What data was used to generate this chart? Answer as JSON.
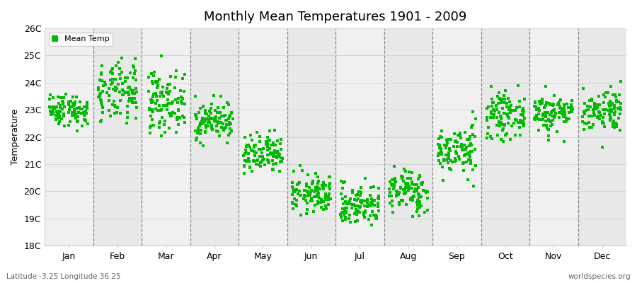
{
  "title": "Monthly Mean Temperatures 1901 - 2009",
  "ylabel": "Temperature",
  "xlabel_months": [
    "Jan",
    "Feb",
    "Mar",
    "Apr",
    "May",
    "Jun",
    "Jul",
    "Aug",
    "Sep",
    "Oct",
    "Nov",
    "Dec"
  ],
  "ylim": [
    18,
    26
  ],
  "yticks": [
    18,
    19,
    20,
    21,
    22,
    23,
    24,
    25,
    26
  ],
  "ytick_labels": [
    "18C",
    "19C",
    "20C",
    "21C",
    "22C",
    "23C",
    "24C",
    "25C",
    "26C"
  ],
  "background_color": "#ffffff",
  "plot_bg_color": "#ffffff",
  "band_color_even": "#f0f0f0",
  "band_color_odd": "#e8e8e8",
  "marker_color": "#00bb00",
  "marker_size": 3.5,
  "legend_label": "Mean Temp",
  "subtitle_left": "Latitude -3.25 Longitude 36.25",
  "subtitle_right": "worldspecies.org",
  "n_years": 109,
  "monthly_means": [
    23.0,
    23.6,
    23.3,
    22.6,
    21.3,
    19.9,
    19.5,
    20.0,
    21.5,
    22.8,
    22.9,
    23.0
  ],
  "monthly_stds": [
    0.3,
    0.55,
    0.55,
    0.35,
    0.38,
    0.35,
    0.38,
    0.4,
    0.45,
    0.4,
    0.35,
    0.4
  ],
  "seed": 42
}
